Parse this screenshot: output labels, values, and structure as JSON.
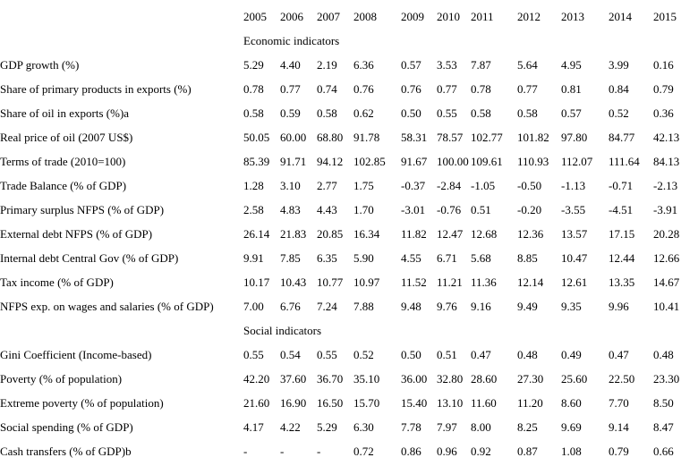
{
  "table": {
    "years": [
      "2005",
      "2006",
      "2007",
      "2008",
      "2009",
      "2010",
      "2011",
      "2012",
      "2013",
      "2014",
      "2015"
    ],
    "sections": [
      {
        "label": "Economic indicators",
        "rows": [
          {
            "label": "GDP growth (%)",
            "values": [
              "5.29",
              "4.40",
              "2.19",
              "6.36",
              "0.57",
              "3.53",
              "7.87",
              "5.64",
              "4.95",
              "3.99",
              "0.16"
            ]
          },
          {
            "label": "Share of primary products in exports (%)",
            "values": [
              "0.78",
              "0.77",
              "0.74",
              "0.76",
              "0.76",
              "0.77",
              "0.78",
              "0.77",
              "0.81",
              "0.84",
              "0.79"
            ]
          },
          {
            "label": "Share of oil in exports (%)a",
            "values": [
              "0.58",
              "0.59",
              "0.58",
              "0.62",
              "0.50",
              "0.55",
              "0.58",
              "0.58",
              "0.57",
              "0.52",
              "0.36"
            ]
          },
          {
            "label": "Real price of oil (2007 US$)",
            "values": [
              "50.05",
              "60.00",
              "68.80",
              "91.78",
              "58.31",
              "78.57",
              "102.77",
              "101.82",
              "97.80",
              "84.77",
              "42.13"
            ]
          },
          {
            "label": "Terms of trade (2010=100)",
            "values": [
              "85.39",
              "91.71",
              "94.12",
              "102.85",
              "91.67",
              "100.00",
              "109.61",
              "110.93",
              "112.07",
              "111.64",
              "84.13"
            ]
          },
          {
            "label": "Trade Balance (% of GDP)",
            "values": [
              "1.28",
              "3.10",
              "2.77",
              "1.75",
              "-0.37",
              "-2.84",
              "-1.05",
              "-0.50",
              "-1.13",
              "-0.71",
              "-2.13"
            ]
          },
          {
            "label": "Primary surplus NFPS (% of GDP)",
            "values": [
              "2.58",
              "4.83",
              "4.43",
              "1.70",
              "-3.01",
              "-0.76",
              "0.51",
              "-0.20",
              "-3.55",
              "-4.51",
              "-3.91"
            ]
          },
          {
            "label": "External debt NFPS (% of GDP)",
            "values": [
              "26.14",
              "21.83",
              "20.85",
              "16.34",
              "11.82",
              "12.47",
              "12.68",
              "12.36",
              "13.57",
              "17.15",
              "20.28"
            ]
          },
          {
            "label": "Internal debt Central Gov (% of GDP)",
            "values": [
              "9.91",
              "7.85",
              "6.35",
              "5.90",
              "4.55",
              "6.71",
              "5.68",
              "8.85",
              "10.47",
              "12.44",
              "12.66"
            ]
          },
          {
            "label": "Tax income (% of GDP)",
            "values": [
              "10.17",
              "10.43",
              "10.77",
              "10.97",
              "11.52",
              "11.21",
              "11.36",
              "12.14",
              "12.61",
              "13.35",
              "14.67"
            ]
          },
          {
            "label": "NFPS exp. on wages and salaries (% of GDP)",
            "values": [
              "7.00",
              "6.76",
              "7.24",
              "7.88",
              "9.48",
              "9.76",
              "9.16",
              "9.49",
              "9.35",
              "9.96",
              "10.41"
            ]
          }
        ]
      },
      {
        "label": "Social indicators",
        "rows": [
          {
            "label": "Gini Coefficient (Income-based)",
            "values": [
              "0.55",
              "0.54",
              "0.55",
              "0.52",
              "0.50",
              "0.51",
              "0.47",
              "0.48",
              "0.49",
              "0.47",
              "0.48"
            ]
          },
          {
            "label": "Poverty (% of population)",
            "values": [
              "42.20",
              "37.60",
              "36.70",
              "35.10",
              "36.00",
              "32.80",
              "28.60",
              "27.30",
              "25.60",
              "22.50",
              "23.30"
            ]
          },
          {
            "label": "Extreme poverty (% of population)",
            "values": [
              "21.60",
              "16.90",
              "16.50",
              "15.70",
              "15.40",
              "13.10",
              "11.60",
              "11.20",
              "8.60",
              "7.70",
              "8.50"
            ]
          },
          {
            "label": "Social spending (% of GDP)",
            "values": [
              "4.17",
              "4.22",
              "5.29",
              "6.30",
              "7.78",
              "7.97",
              "8.00",
              "8.25",
              "9.69",
              "9.14",
              "8.47"
            ]
          },
          {
            "label": "Cash transfers (% of GDP)b",
            "values": [
              "-",
              "-",
              "-",
              "0.72",
              "0.86",
              "0.96",
              "0.92",
              "0.87",
              "1.08",
              "0.79",
              "0.66"
            ]
          }
        ]
      }
    ]
  }
}
